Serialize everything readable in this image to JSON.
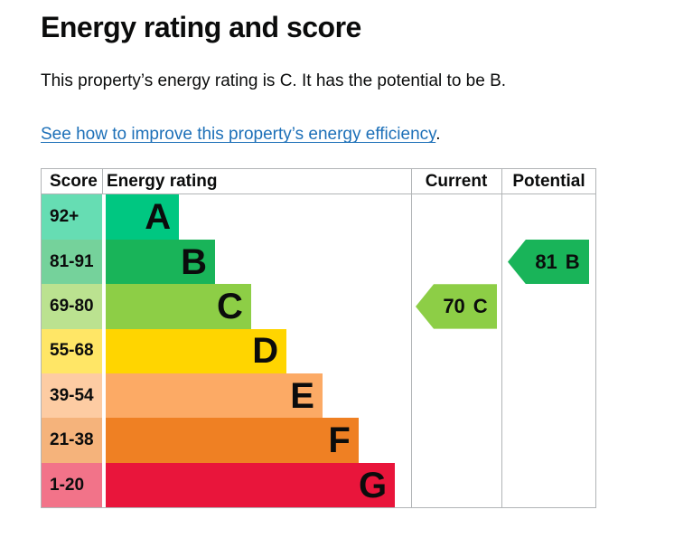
{
  "page": {
    "title": "Energy rating and score",
    "summary": "This property’s energy rating is C. It has the potential to be B.",
    "link_text": "See how to improve this property’s energy efficiency",
    "link_suffix": "."
  },
  "table": {
    "headers": {
      "score": "Score",
      "rating": "Energy rating",
      "current": "Current",
      "potential": "Potential"
    },
    "bands": [
      {
        "letter": "A",
        "score": "92+",
        "color": "#00c781",
        "bar_width_pct": 24.0
      },
      {
        "letter": "B",
        "score": "81-91",
        "color": "#19b459",
        "bar_width_pct": 35.8
      },
      {
        "letter": "C",
        "score": "69-80",
        "color": "#8dce46",
        "bar_width_pct": 47.6
      },
      {
        "letter": "D",
        "score": "55-68",
        "color": "#ffd500",
        "bar_width_pct": 59.2
      },
      {
        "letter": "E",
        "score": "39-54",
        "color": "#fcaa65",
        "bar_width_pct": 71.0
      },
      {
        "letter": "F",
        "score": "21-38",
        "color": "#ef8023",
        "bar_width_pct": 82.8
      },
      {
        "letter": "G",
        "score": "1-20",
        "color": "#e9153b",
        "bar_width_pct": 94.7
      }
    ],
    "current": {
      "value": "70",
      "band": "C",
      "color": "#8dce46"
    },
    "potential": {
      "value": "81",
      "band": "B",
      "color": "#19b459"
    }
  },
  "colors": {
    "text": "#0b0c0c",
    "link": "#1d70b8",
    "border": "#b1b4b6",
    "score_cell_opacity": "0.6"
  }
}
